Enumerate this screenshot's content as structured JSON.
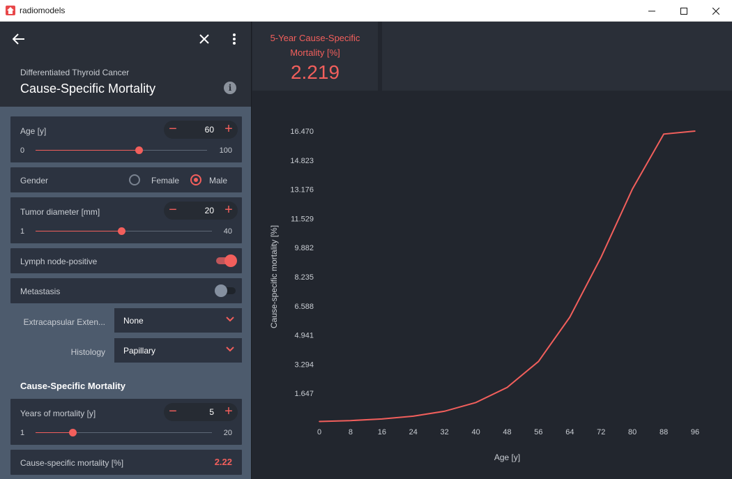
{
  "window": {
    "title": "radiomodels",
    "minimize_icon": "minimize-icon",
    "maximize_icon": "maximize-icon",
    "close_icon": "close-icon"
  },
  "header": {
    "subtitle": "Differentiated Thyroid Cancer",
    "title": "Cause-Specific Mortality",
    "info_icon_glyph": "i"
  },
  "inputs": {
    "age": {
      "label": "Age [y]",
      "value": "60",
      "min": "0",
      "max": "100",
      "fraction": 0.6
    },
    "gender": {
      "label": "Gender",
      "options": [
        "Female",
        "Male"
      ],
      "selected": "Male"
    },
    "tumor_diameter": {
      "label": "Tumor diameter [mm]",
      "value": "20",
      "min": "1",
      "max": "40",
      "fraction": 0.487
    },
    "lymph_node": {
      "label": "Lymph node-positive",
      "on": true
    },
    "metastasis": {
      "label": "Metastasis",
      "on": false
    },
    "extracapsular": {
      "label": "Extracapsular Exten...",
      "value": "None"
    },
    "histology": {
      "label": "Histology",
      "value": "Papillary"
    }
  },
  "output_section": {
    "title": "Cause-Specific Mortality",
    "years": {
      "label": "Years of mortality [y]",
      "value": "5",
      "min": "1",
      "max": "20",
      "fraction": 0.21
    },
    "result": {
      "label": "Cause-specific mortality [%]",
      "value": "2.22"
    }
  },
  "kpi": {
    "label": "5-Year Cause-Specific Mortality [%]",
    "value": "2.219"
  },
  "colors": {
    "accent": "#f25f5c",
    "panel": "#2c3340",
    "background": "#22262e"
  },
  "chart_data": {
    "type": "line",
    "xlabel": "Age [y]",
    "ylabel": "Cause-specific mortality [%]",
    "x_ticks": [
      0,
      8,
      16,
      24,
      32,
      40,
      48,
      56,
      64,
      72,
      80,
      88,
      96
    ],
    "y_ticks": [
      1.647,
      3.294,
      4.941,
      6.588,
      8.235,
      9.882,
      11.529,
      13.176,
      14.823,
      16.47
    ],
    "xlim": [
      0,
      96
    ],
    "ylim": [
      0,
      16.47
    ],
    "grid": false,
    "series": [
      {
        "x": [
          0,
          8,
          16,
          24,
          32,
          40,
          48,
          56,
          64,
          72,
          80,
          88,
          96
        ],
        "y": [
          0.06,
          0.11,
          0.2,
          0.36,
          0.64,
          1.13,
          1.98,
          3.45,
          5.95,
          9.35,
          13.2,
          16.3,
          16.47
        ]
      }
    ]
  }
}
